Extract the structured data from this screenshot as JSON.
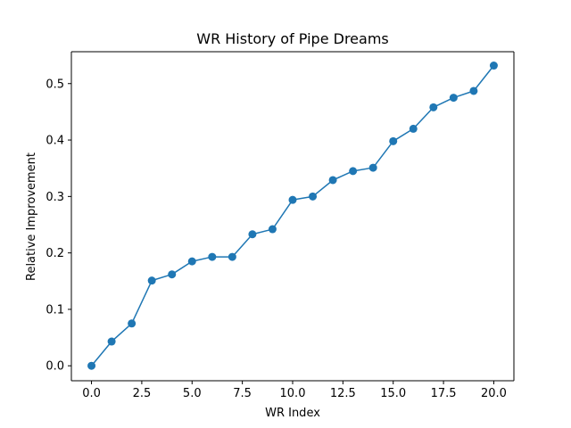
{
  "chart_data": {
    "type": "line",
    "title": "WR History of Pipe Dreams",
    "xlabel": "WR Index",
    "ylabel": "Relative Improvement",
    "xlim": [
      -1.0,
      21.0
    ],
    "ylim": [
      -0.0265,
      0.5565
    ],
    "xticks": [
      0.0,
      2.5,
      5.0,
      7.5,
      10.0,
      12.5,
      15.0,
      17.5,
      20.0
    ],
    "xtick_labels": [
      "0.0",
      "2.5",
      "5.0",
      "7.5",
      "10.0",
      "12.5",
      "15.0",
      "17.5",
      "20.0"
    ],
    "yticks": [
      0.0,
      0.1,
      0.2,
      0.3,
      0.4,
      0.5
    ],
    "ytick_labels": [
      "0.0",
      "0.1",
      "0.2",
      "0.3",
      "0.4",
      "0.5"
    ],
    "grid": false,
    "legend": "none",
    "series": [
      {
        "color": "#1f77b4",
        "marker": "circle",
        "x": [
          0,
          1,
          2,
          3,
          4,
          5,
          6,
          7,
          8,
          9,
          10,
          11,
          12,
          13,
          14,
          15,
          16,
          17,
          18,
          19,
          20
        ],
        "y": [
          0.0,
          0.043,
          0.075,
          0.151,
          0.162,
          0.185,
          0.193,
          0.193,
          0.233,
          0.242,
          0.294,
          0.3,
          0.329,
          0.345,
          0.351,
          0.398,
          0.42,
          0.458,
          0.475,
          0.487,
          0.532
        ]
      }
    ]
  }
}
